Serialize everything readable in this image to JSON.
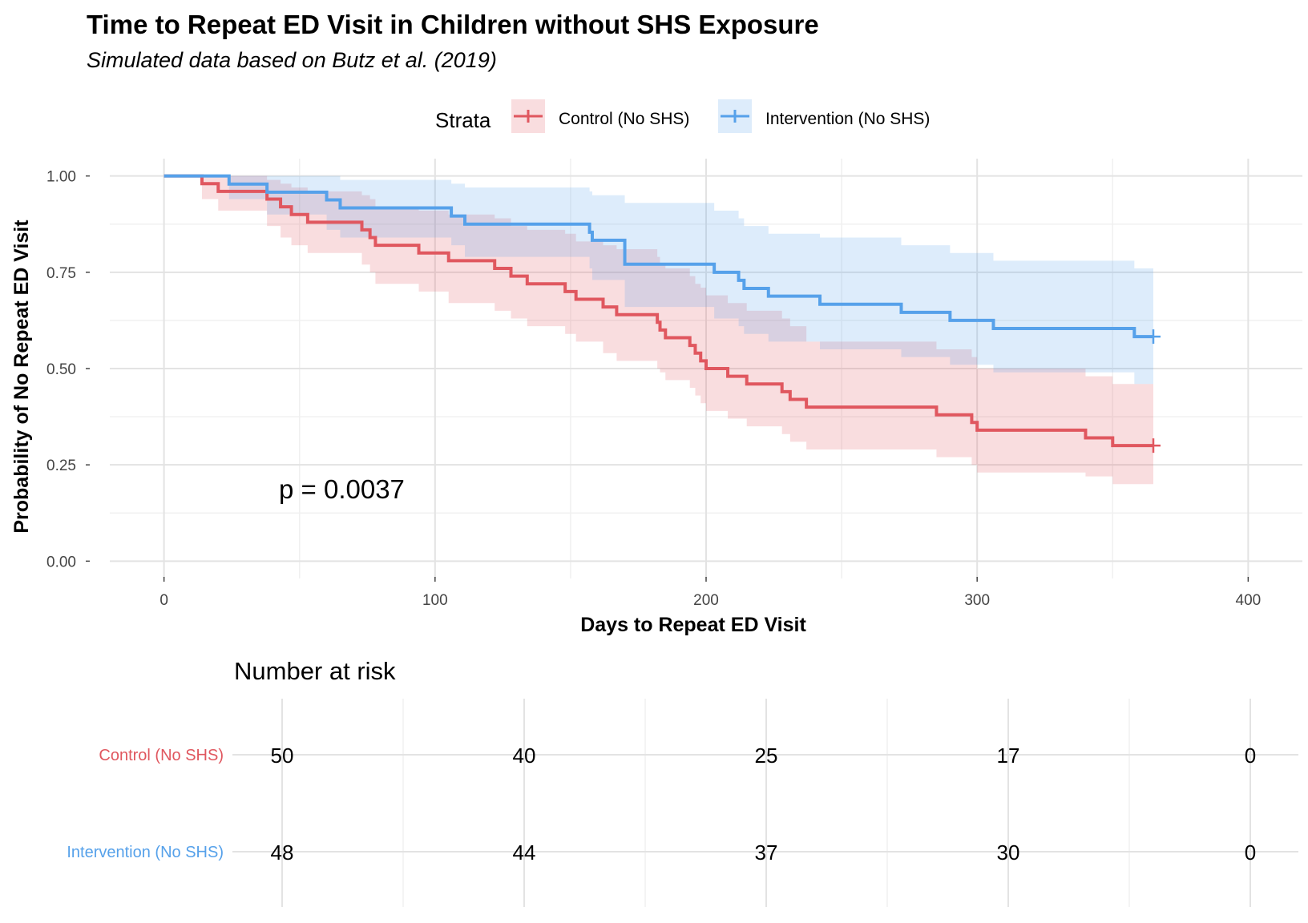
{
  "title": "Time to Repeat ED Visit in Children without SHS Exposure",
  "subtitle": "Simulated data based on Butz et al. (2019)",
  "legend": {
    "title": "Strata",
    "items": [
      "Control (No SHS)",
      "Intervention (No SHS)"
    ]
  },
  "annotation": "p = 0.0037",
  "colors": {
    "control": "#E0575F",
    "intervention": "#56A1EA",
    "grid_major": "#e3e3e3",
    "grid_minor": "#f0f0f0"
  },
  "chart_data": [
    {
      "type": "line",
      "subtype": "kaplan-meier",
      "xlabel": "Days to Repeat ED Visit",
      "ylabel": "Probability of No Repeat ED Visit",
      "xlim": [
        -20,
        420
      ],
      "ylim": [
        -0.045,
        1.045
      ],
      "x_ticks": [
        0,
        100,
        200,
        300,
        400
      ],
      "y_ticks": [
        0.0,
        0.25,
        0.5,
        0.75,
        1.0
      ],
      "y_tick_labels": [
        "0.00",
        "0.25",
        "0.50",
        "0.75",
        "1.00"
      ],
      "grid": true,
      "legend_position": "top",
      "series": [
        {
          "name": "Control (No SHS)",
          "color": "#E0575F",
          "censor": [
            [
              365,
              0.3
            ]
          ],
          "steps": [
            [
              0,
              1.0
            ],
            [
              14,
              0.98
            ],
            [
              20,
              0.96
            ],
            [
              38,
              0.94
            ],
            [
              43,
              0.92
            ],
            [
              47,
              0.9
            ],
            [
              53,
              0.88
            ],
            [
              73,
              0.86
            ],
            [
              76,
              0.84
            ],
            [
              78,
              0.82
            ],
            [
              94,
              0.8
            ],
            [
              105,
              0.78
            ],
            [
              122,
              0.76
            ],
            [
              128,
              0.74
            ],
            [
              134,
              0.72
            ],
            [
              148,
              0.7
            ],
            [
              152,
              0.68
            ],
            [
              162,
              0.66
            ],
            [
              167,
              0.64
            ],
            [
              182,
              0.62
            ],
            [
              183,
              0.6
            ],
            [
              185,
              0.58
            ],
            [
              194,
              0.56
            ],
            [
              196,
              0.54
            ],
            [
              198,
              0.52
            ],
            [
              200,
              0.5
            ],
            [
              208,
              0.48
            ],
            [
              215,
              0.46
            ],
            [
              228,
              0.44
            ],
            [
              231,
              0.42
            ],
            [
              237,
              0.4
            ],
            [
              285,
              0.38
            ],
            [
              298,
              0.36
            ],
            [
              300,
              0.34
            ],
            [
              340,
              0.32
            ],
            [
              350,
              0.3
            ],
            [
              365,
              0.3
            ]
          ],
          "ci_steps": [
            [
              0,
              1.0,
              1.0
            ],
            [
              14,
              1.0,
              0.94
            ],
            [
              20,
              1.0,
              0.91
            ],
            [
              38,
              0.99,
              0.87
            ],
            [
              43,
              0.98,
              0.84
            ],
            [
              47,
              0.97,
              0.82
            ],
            [
              53,
              0.96,
              0.8
            ],
            [
              73,
              0.95,
              0.77
            ],
            [
              76,
              0.94,
              0.75
            ],
            [
              78,
              0.92,
              0.72
            ],
            [
              94,
              0.91,
              0.7
            ],
            [
              105,
              0.9,
              0.67
            ],
            [
              122,
              0.89,
              0.65
            ],
            [
              128,
              0.87,
              0.63
            ],
            [
              134,
              0.86,
              0.61
            ],
            [
              148,
              0.85,
              0.59
            ],
            [
              152,
              0.83,
              0.57
            ],
            [
              162,
              0.82,
              0.54
            ],
            [
              167,
              0.81,
              0.52
            ],
            [
              182,
              0.79,
              0.5
            ],
            [
              183,
              0.77,
              0.49
            ],
            [
              185,
              0.76,
              0.47
            ],
            [
              194,
              0.74,
              0.45
            ],
            [
              196,
              0.72,
              0.43
            ],
            [
              198,
              0.71,
              0.41
            ],
            [
              200,
              0.69,
              0.39
            ],
            [
              208,
              0.67,
              0.37
            ],
            [
              215,
              0.65,
              0.35
            ],
            [
              228,
              0.63,
              0.33
            ],
            [
              231,
              0.61,
              0.31
            ],
            [
              237,
              0.57,
              0.29
            ],
            [
              285,
              0.55,
              0.27
            ],
            [
              298,
              0.53,
              0.25
            ],
            [
              300,
              0.5,
              0.23
            ],
            [
              340,
              0.48,
              0.22
            ],
            [
              350,
              0.46,
              0.2
            ],
            [
              365,
              0.46,
              0.2
            ]
          ]
        },
        {
          "name": "Intervention (No SHS)",
          "color": "#56A1EA",
          "censor": [
            [
              365,
              0.583
            ]
          ],
          "steps": [
            [
              0,
              1.0
            ],
            [
              24,
              0.979
            ],
            [
              38,
              0.958
            ],
            [
              60,
              0.938
            ],
            [
              65,
              0.917
            ],
            [
              106,
              0.896
            ],
            [
              111,
              0.875
            ],
            [
              157,
              0.854
            ],
            [
              158,
              0.833
            ],
            [
              170,
              0.771
            ],
            [
              203,
              0.75
            ],
            [
              212,
              0.729
            ],
            [
              214,
              0.708
            ],
            [
              223,
              0.688
            ],
            [
              242,
              0.667
            ],
            [
              272,
              0.646
            ],
            [
              290,
              0.625
            ],
            [
              306,
              0.604
            ],
            [
              358,
              0.583
            ],
            [
              365,
              0.583
            ]
          ],
          "ci_steps": [
            [
              0,
              1.0,
              1.0
            ],
            [
              24,
              1.0,
              0.94
            ],
            [
              38,
              1.0,
              0.9
            ],
            [
              60,
              1.0,
              0.86
            ],
            [
              65,
              0.99,
              0.84
            ],
            [
              106,
              0.98,
              0.82
            ],
            [
              111,
              0.97,
              0.79
            ],
            [
              157,
              0.96,
              0.76
            ],
            [
              158,
              0.95,
              0.73
            ],
            [
              170,
              0.93,
              0.66
            ],
            [
              203,
              0.91,
              0.63
            ],
            [
              212,
              0.89,
              0.61
            ],
            [
              214,
              0.87,
              0.59
            ],
            [
              223,
              0.85,
              0.57
            ],
            [
              242,
              0.84,
              0.55
            ],
            [
              272,
              0.82,
              0.53
            ],
            [
              290,
              0.8,
              0.51
            ],
            [
              306,
              0.78,
              0.49
            ],
            [
              358,
              0.76,
              0.46
            ],
            [
              365,
              0.74,
              0.46
            ]
          ]
        }
      ]
    },
    {
      "type": "table",
      "title": "Number at risk",
      "columns": [
        0,
        100,
        200,
        300,
        400
      ],
      "rows": [
        {
          "name": "Control (No SHS)",
          "color": "#E0575F",
          "values": [
            50,
            40,
            25,
            17,
            0
          ]
        },
        {
          "name": "Intervention (No SHS)",
          "color": "#56A1EA",
          "values": [
            48,
            44,
            37,
            30,
            0
          ]
        }
      ]
    }
  ]
}
